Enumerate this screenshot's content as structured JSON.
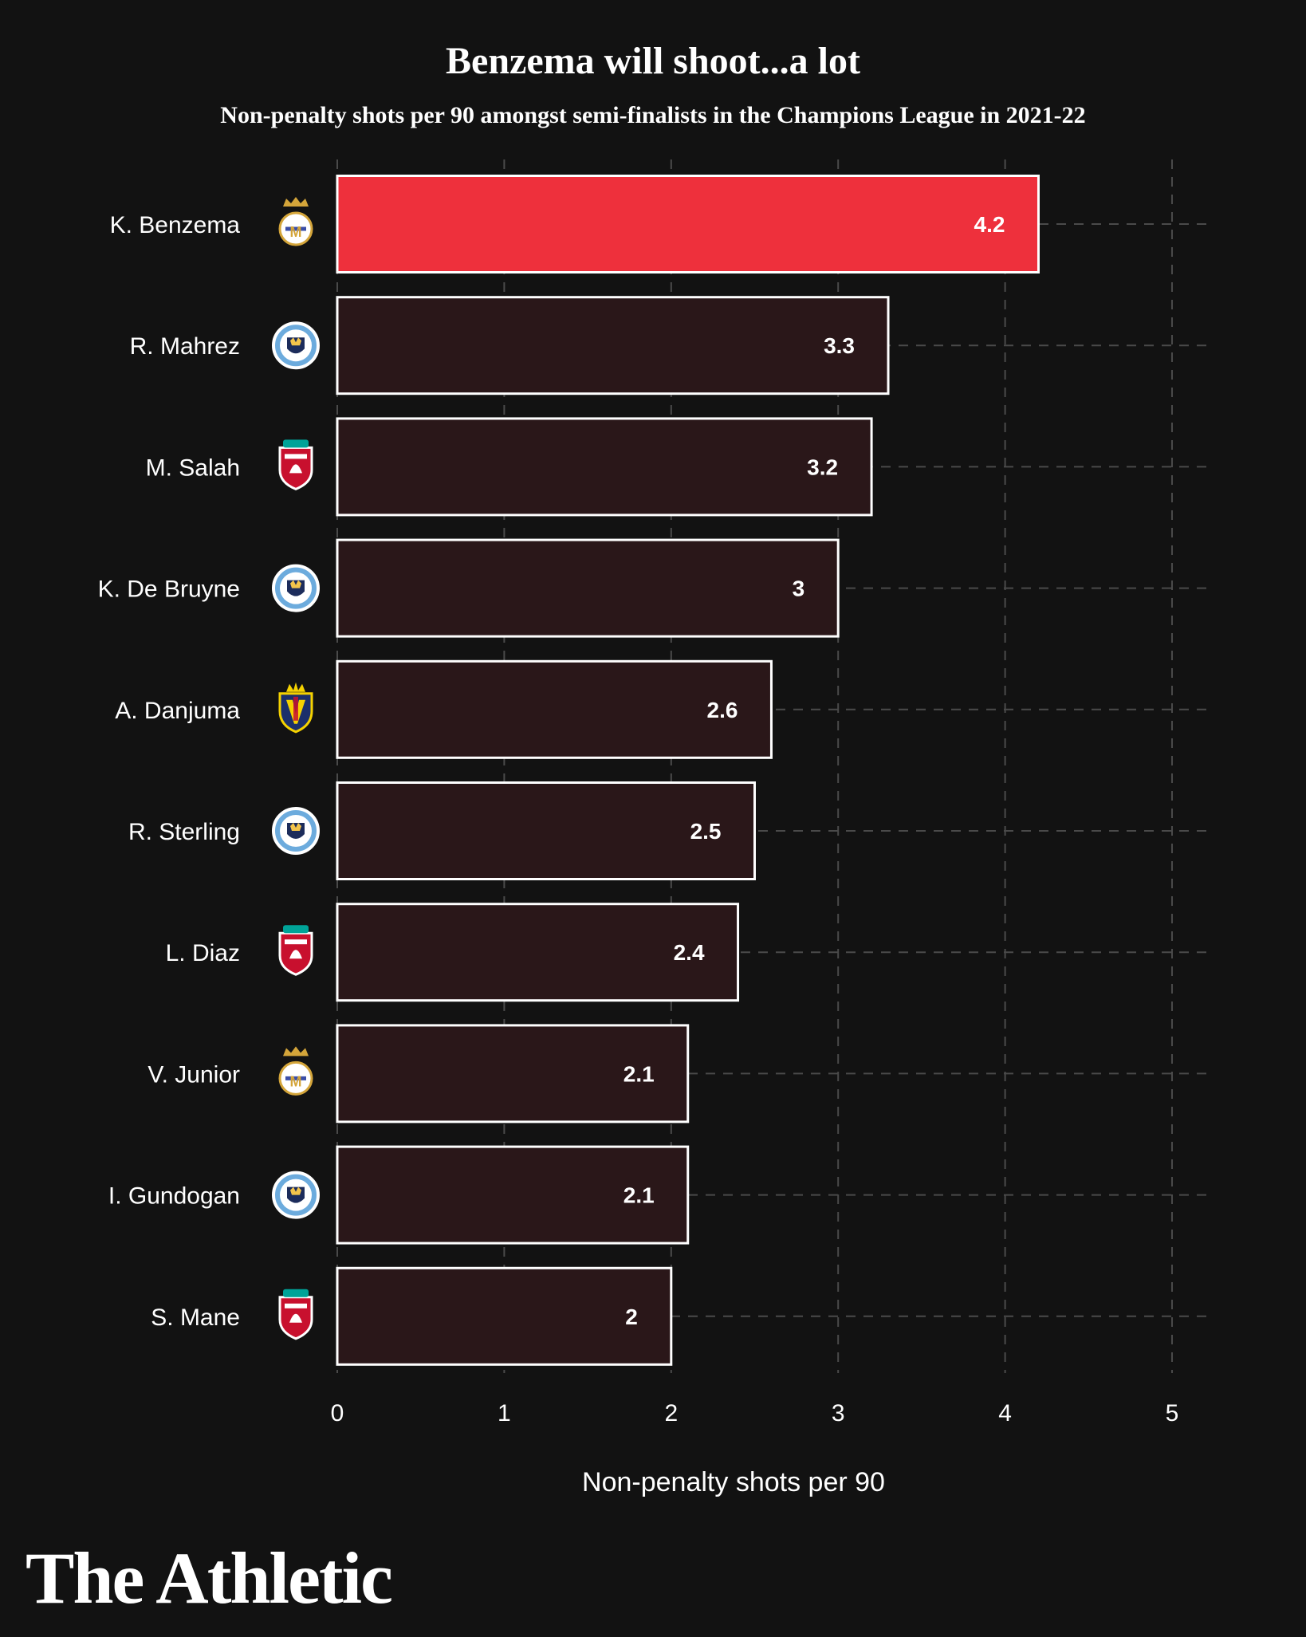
{
  "chart_data": {
    "type": "bar",
    "orientation": "horizontal",
    "title": "Benzema will shoot...a lot",
    "subtitle": "Non-penalty shots per 90 amongst semi-finalists in the Champions League in 2021-22",
    "xlabel": "Non-penalty shots per 90",
    "ylabel": "",
    "xlim": [
      0,
      5
    ],
    "x_ticks": [
      "0",
      "1",
      "2",
      "3",
      "4",
      "5"
    ],
    "grid": true,
    "categories": [
      "K. Benzema",
      "R. Mahrez",
      "M. Salah",
      "K. De Bruyne",
      "A. Danjuma",
      "R. Sterling",
      "L. Diaz",
      "V. Junior",
      "I. Gundogan",
      "S. Mane"
    ],
    "values": [
      4.2,
      3.3,
      3.2,
      3.0,
      2.6,
      2.5,
      2.4,
      2.1,
      2.1,
      2.0
    ],
    "value_labels": [
      "4.2",
      "3.3",
      "3.2",
      "3",
      "2.6",
      "2.5",
      "2.4",
      "2.1",
      "2.1",
      "2"
    ],
    "club_icons": [
      "real-madrid-crest-icon",
      "man-city-crest-icon",
      "liverpool-crest-icon",
      "man-city-crest-icon",
      "villarreal-crest-icon",
      "man-city-crest-icon",
      "liverpool-crest-icon",
      "real-madrid-crest-icon",
      "man-city-crest-icon",
      "liverpool-crest-icon"
    ],
    "highlight_index": 0,
    "colors": {
      "background": "#121212",
      "bar": "#2a1719",
      "highlight_bar": "#ee303c",
      "bar_outline": "#ffffff",
      "grid": "#4a4a4a"
    }
  },
  "brand": "The Athletic"
}
